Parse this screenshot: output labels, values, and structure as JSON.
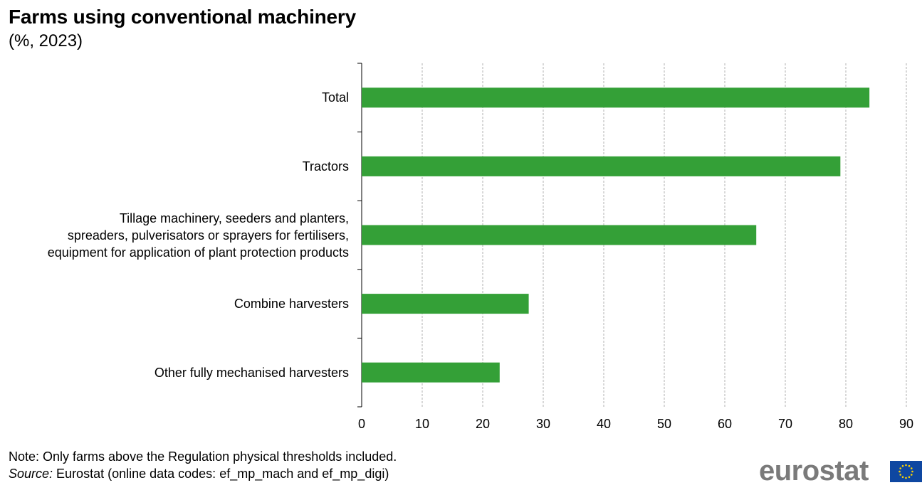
{
  "header": {
    "title": "Farms using conventional machinery",
    "subtitle": "(%, 2023)"
  },
  "chart_data": {
    "type": "bar",
    "orientation": "horizontal",
    "categories": [
      "Total",
      "Tractors",
      "Tillage machinery, seeders and planters, spreaders, pulverisators or sprayers for fertilisers, equipment for application of plant protection products",
      "Combine harvesters",
      "Other fully mechanised harvesters"
    ],
    "category_lines": [
      [
        "Total"
      ],
      [
        "Tractors"
      ],
      [
        "Tillage machinery, seeders and planters,",
        "spreaders, pulverisators or sprayers for fertilisers,",
        "equipment for application of plant protection products"
      ],
      [
        "Combine harvesters"
      ],
      [
        "Other fully mechanised harvesters"
      ]
    ],
    "values": [
      83.9,
      79.1,
      65.2,
      27.6,
      22.8
    ],
    "xlim": [
      0,
      90
    ],
    "xticks": [
      0,
      10,
      20,
      30,
      40,
      50,
      60,
      70,
      80,
      90
    ],
    "bar_color": "#34a037",
    "grid": true
  },
  "footer": {
    "note": "Note: Only farms above the Regulation physical thresholds included.",
    "source_label": "Source:",
    "source_text": " Eurostat (online data codes: ef_mp_mach and ef_mp_digi)",
    "logo": "eurostat"
  }
}
